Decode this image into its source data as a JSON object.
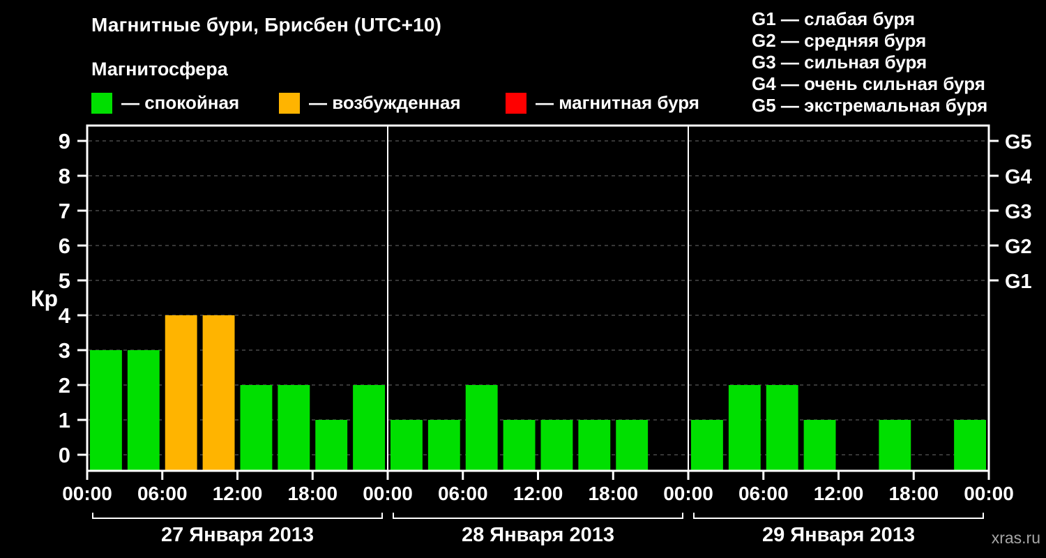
{
  "subtitle": "Магнитосфера",
  "legend": {
    "quiet": {
      "label": "— спокойная",
      "color": "#00df00"
    },
    "excited": {
      "label": "— возбужденная",
      "color": "#ffb400"
    },
    "storm": {
      "label": "— магнитная буря",
      "color": "#ff0000"
    }
  },
  "storm_scale": [
    "G1 — слабая буря",
    "G2 — средняя буря",
    "G3 — сильная буря",
    "G4 — очень сильная буря",
    "G5 — экстремальная буря"
  ],
  "watermark": "xras.ru",
  "chart_data": {
    "type": "bar",
    "title": "Магнитные бури, Брисбен (UTC+10)",
    "ylabel": "Кр",
    "ylim": [
      0,
      9.5
    ],
    "yticks": [
      0,
      1,
      2,
      3,
      4,
      5,
      6,
      7,
      8,
      9
    ],
    "bar_interval_hours": 3,
    "time_labels": [
      "00:00",
      "06:00",
      "12:00",
      "18:00"
    ],
    "closing_time_label": "00:00",
    "g_scale": [
      {
        "level": 5,
        "label": "G1"
      },
      {
        "level": 6,
        "label": "G2"
      },
      {
        "level": 7,
        "label": "G3"
      },
      {
        "level": 8,
        "label": "G4"
      },
      {
        "level": 9,
        "label": "G5"
      }
    ],
    "color_rule": "Kp<4 quiet(green), Kp=4 excited(orange), Kp>=5 storm(red), Kp=0 no bar",
    "grid": "horizontal-dashed",
    "legend_position": "top",
    "days": [
      {
        "date": "27 Января 2013",
        "hours": [
          0,
          3,
          6,
          9,
          12,
          15,
          18,
          21
        ],
        "kp": [
          3,
          3,
          4,
          4,
          2,
          2,
          1,
          2
        ]
      },
      {
        "date": "28 Января 2013",
        "hours": [
          0,
          3,
          6,
          9,
          12,
          15,
          18,
          21
        ],
        "kp": [
          1,
          1,
          2,
          1,
          1,
          1,
          1,
          0
        ]
      },
      {
        "date": "29 Января 2013",
        "hours": [
          0,
          3,
          6,
          9,
          12,
          15,
          18,
          21
        ],
        "kp": [
          1,
          2,
          2,
          1,
          0,
          1,
          0,
          1
        ]
      }
    ]
  }
}
